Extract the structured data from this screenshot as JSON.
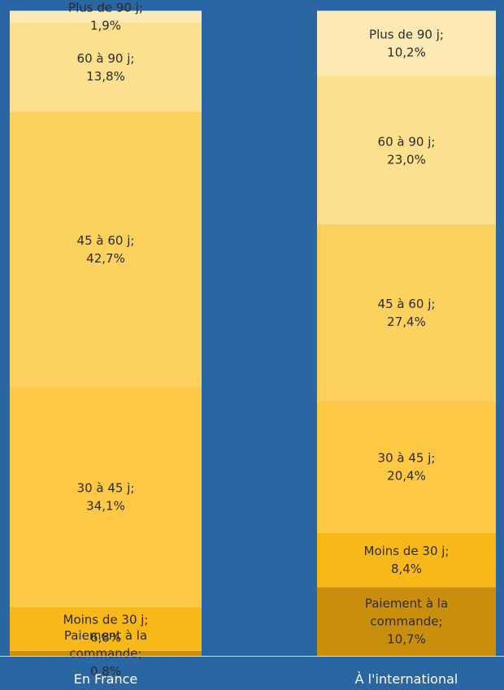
{
  "chart_data": {
    "type": "stacked_bar",
    "categories": [
      "En France",
      "À l'international"
    ],
    "series": [
      {
        "name": "Paiement à la commande",
        "color": "#c98f0c",
        "values": [
          0.8,
          10.7
        ],
        "value_labels": [
          "0,8%",
          "10,7%"
        ]
      },
      {
        "name": "Moins de 30 j",
        "color": "#f8b817",
        "values": [
          6.8,
          8.4
        ],
        "value_labels": [
          "6,8%",
          "8,4%"
        ]
      },
      {
        "name": "30 à 45 j",
        "color": "#fdc843",
        "values": [
          34.1,
          20.4
        ],
        "value_labels": [
          "34,1%",
          "20,4%"
        ]
      },
      {
        "name": "45 à 60 j",
        "color": "#fdd15e",
        "values": [
          42.7,
          27.4
        ],
        "value_labels": [
          "42,7%",
          "27,4%"
        ]
      },
      {
        "name": "60 à 90 j",
        "color": "#fde08e",
        "values": [
          13.8,
          23.0
        ],
        "value_labels": [
          "13,8%",
          "23,0%"
        ]
      },
      {
        "name": "Plus de 90 j",
        "color": "#fde9b4",
        "values": [
          1.9,
          10.2
        ],
        "value_labels": [
          "1,9%",
          "10,2%"
        ]
      }
    ],
    "label_separator": ";",
    "ylim": [
      0,
      100
    ]
  }
}
